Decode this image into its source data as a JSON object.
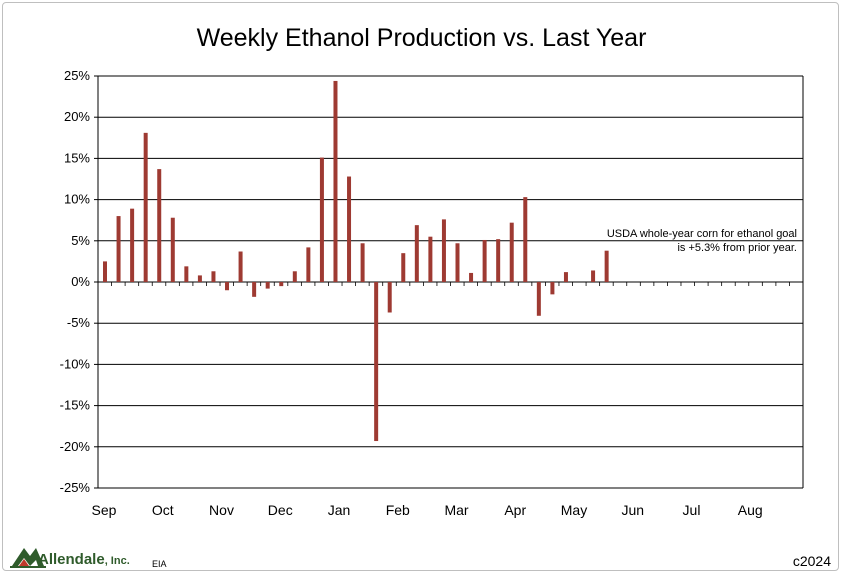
{
  "chart_data": {
    "type": "bar",
    "title": "Weekly Ethanol Production vs. Last Year",
    "xlabel": "",
    "ylabel": "",
    "ylim": [
      -25,
      25
    ],
    "y_ticks": [
      "25%",
      "20%",
      "15%",
      "10%",
      "5%",
      "0%",
      "-5%",
      "-10%",
      "-15%",
      "-20%",
      "-25%"
    ],
    "x_ticks": [
      "Sep",
      "Oct",
      "Nov",
      "Dec",
      "Jan",
      "Feb",
      "Mar",
      "Apr",
      "May",
      "Jun",
      "Jul",
      "Aug"
    ],
    "weeks_total": 52,
    "values": [
      2.5,
      8.0,
      8.9,
      18.1,
      13.7,
      7.8,
      1.9,
      0.8,
      1.3,
      -1.0,
      3.7,
      -1.8,
      -0.8,
      -0.5,
      1.3,
      4.2,
      15.1,
      24.4,
      12.8,
      4.7,
      -19.3,
      -3.7,
      3.5,
      6.9,
      5.5,
      7.6,
      4.7,
      1.1,
      5.1,
      5.2,
      7.2,
      10.3,
      -4.1,
      -1.5,
      1.2,
      null,
      1.4,
      3.8
    ],
    "bar_color": "#9e3a32",
    "grid": true,
    "annotation": [
      "USDA whole-year corn for ethanol goal",
      "is +5.3% from prior year."
    ]
  },
  "footer": {
    "logo": "Allendale",
    "logo_suffix": ", Inc.",
    "source": "EIA",
    "copyright": "c2024"
  }
}
